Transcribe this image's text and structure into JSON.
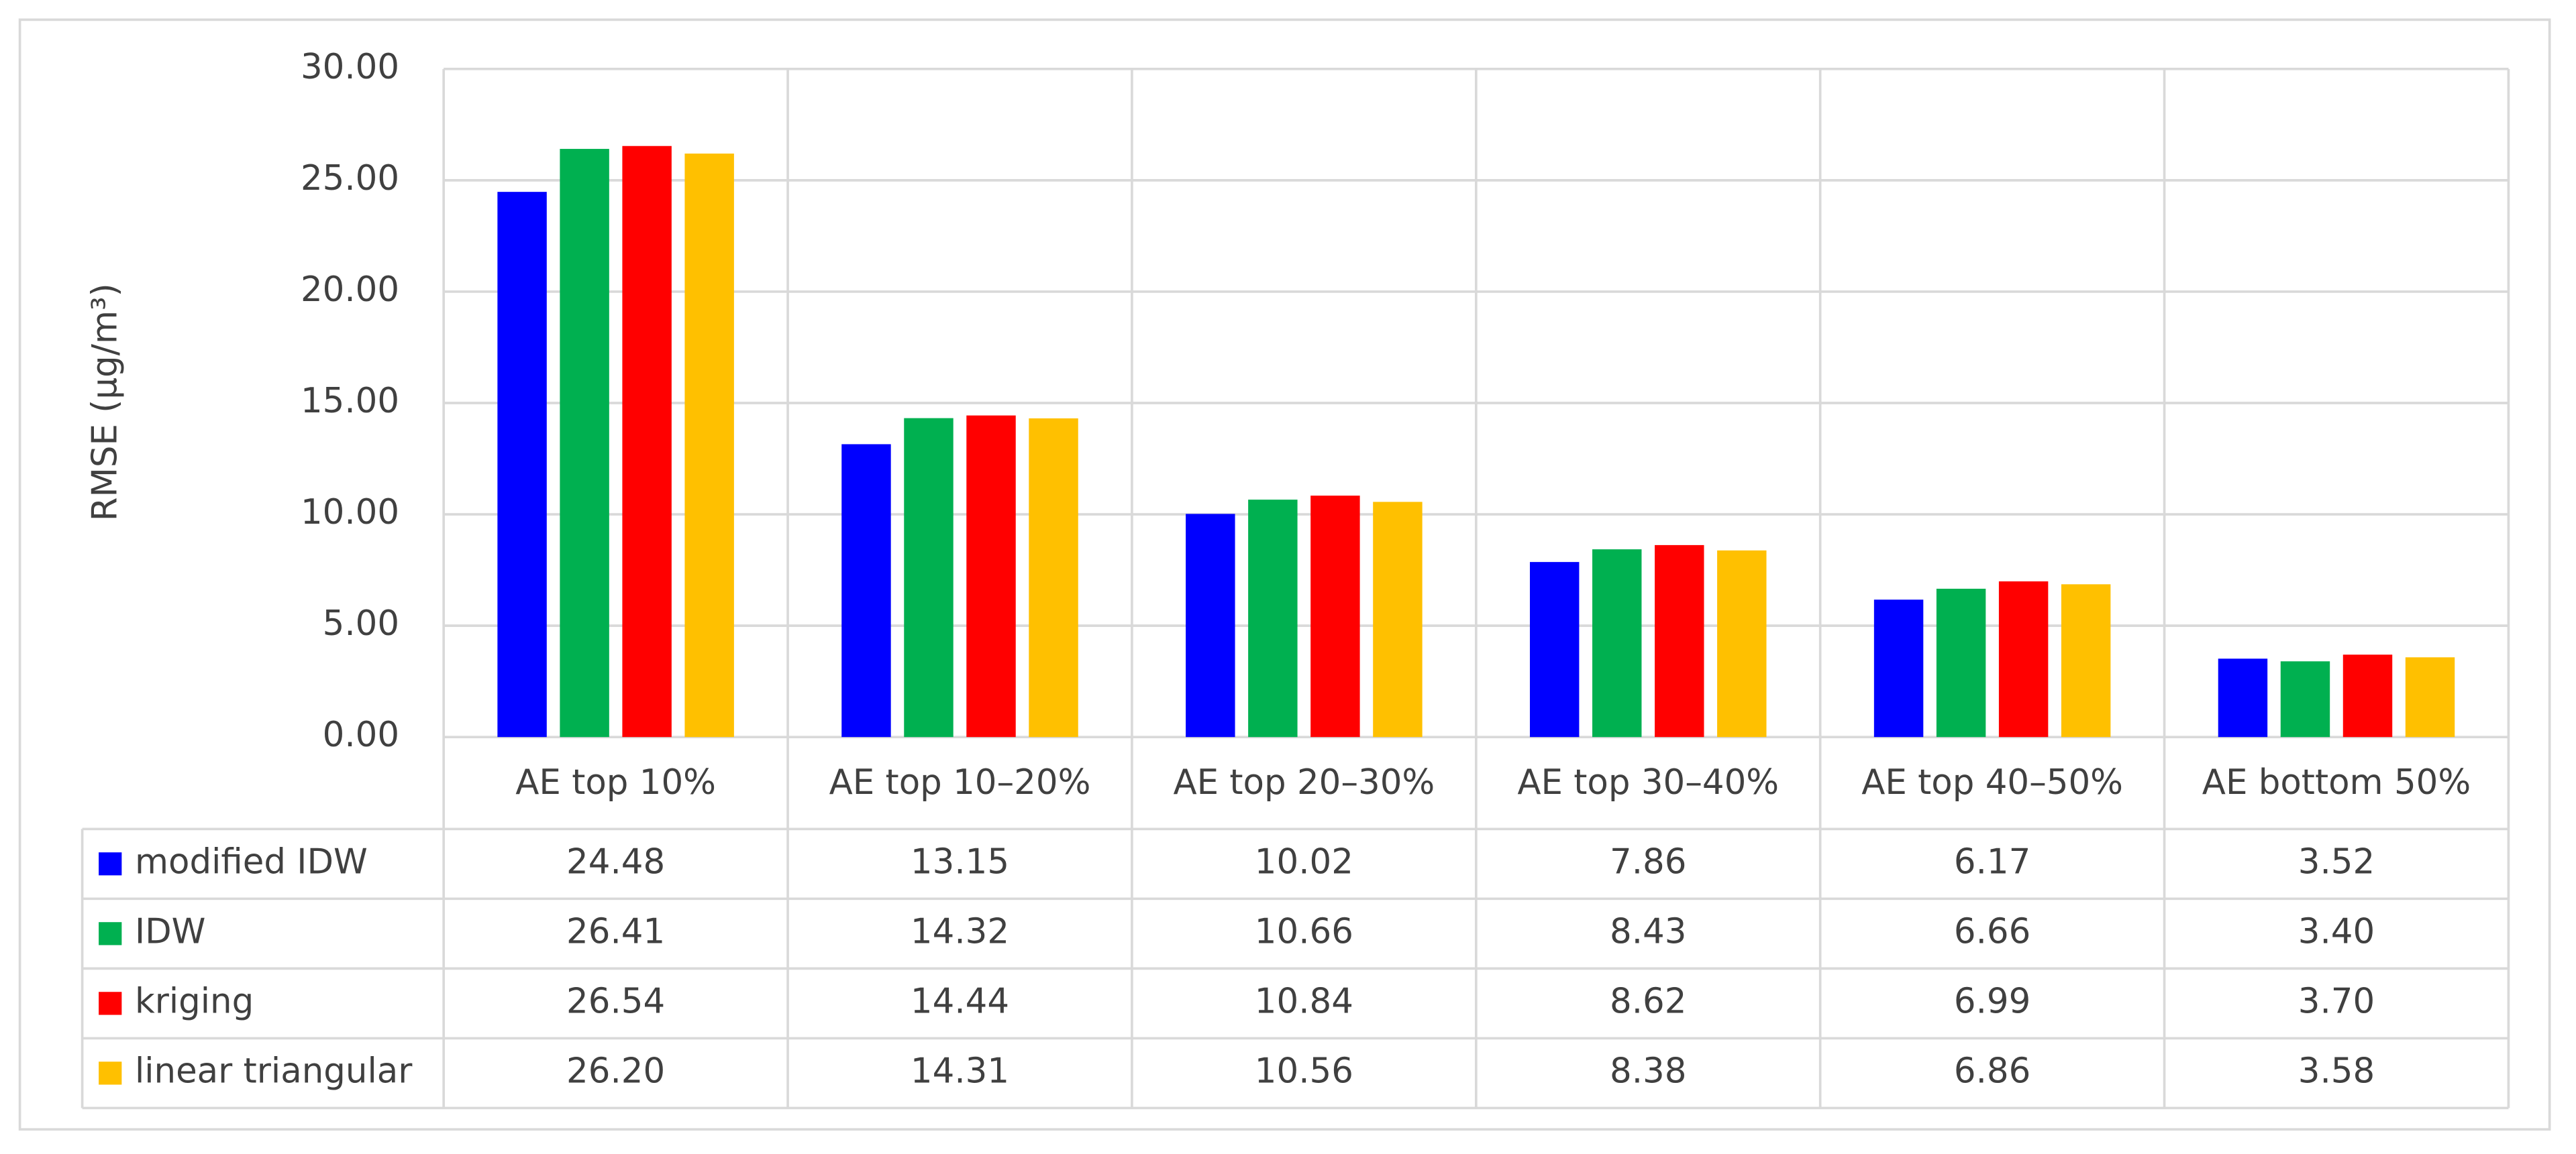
{
  "chart_data": {
    "type": "bar",
    "y_label": "RMSE (μg/m³)",
    "categories": [
      "AE top 10%",
      "AE top 10–20%",
      "AE top 20–30%",
      "AE top 30–40%",
      "AE top 40–50%",
      "AE bottom 50%"
    ],
    "series": [
      {
        "name": "modified IDW",
        "color": "#0000ff",
        "values": [
          24.48,
          13.15,
          10.02,
          7.86,
          6.17,
          3.52
        ],
        "value_labels": [
          "24.48",
          "13.15",
          "10.02",
          "7.86",
          "6.17",
          "3.52"
        ]
      },
      {
        "name": "IDW",
        "color": "#00b050",
        "values": [
          26.41,
          14.32,
          10.66,
          8.43,
          6.66,
          3.4
        ],
        "value_labels": [
          "26.41",
          "14.32",
          "10.66",
          "8.43",
          "6.66",
          "3.40"
        ]
      },
      {
        "name": "kriging",
        "color": "#ff0000",
        "values": [
          26.54,
          14.44,
          10.84,
          8.62,
          6.99,
          3.7
        ],
        "value_labels": [
          "26.54",
          "14.44",
          "10.84",
          "8.62",
          "6.99",
          "3.70"
        ]
      },
      {
        "name": "linear triangular",
        "color": "#ffc000",
        "values": [
          26.2,
          14.31,
          10.56,
          8.38,
          6.86,
          3.58
        ],
        "value_labels": [
          "26.20",
          "14.31",
          "10.56",
          "8.38",
          "6.86",
          "3.58"
        ]
      }
    ],
    "ylim": [
      0,
      30
    ],
    "yticks": [
      {
        "value": 0,
        "label": "0.00"
      },
      {
        "value": 5,
        "label": "5.00"
      },
      {
        "value": 10,
        "label": "10.00"
      },
      {
        "value": 15,
        "label": "15.00"
      },
      {
        "value": 20,
        "label": "20.00"
      },
      {
        "value": 25,
        "label": "25.00"
      },
      {
        "value": 30,
        "label": "30.00"
      }
    ],
    "grid": true,
    "data_table": true
  }
}
